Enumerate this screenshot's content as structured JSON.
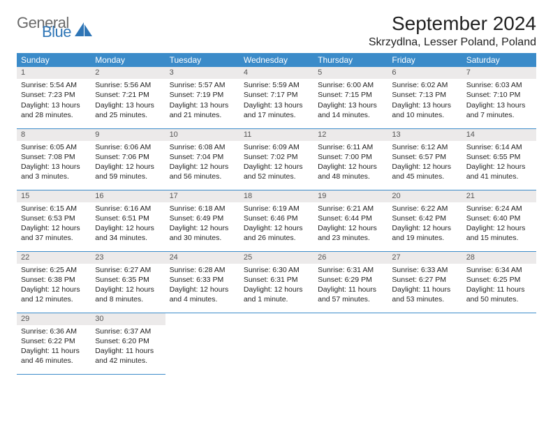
{
  "brand": {
    "word1": "General",
    "word2": "Blue",
    "color1": "#6a6a6a",
    "color2": "#2e75b6"
  },
  "header": {
    "month": "September 2024",
    "location": "Skrzydlna, Lesser Poland, Poland"
  },
  "theme": {
    "header_bg": "#3b8bc9",
    "header_fg": "#ffffff",
    "row_rule": "#3b8bc9",
    "daynum_bg": "#eceaea"
  },
  "weekdays": [
    "Sunday",
    "Monday",
    "Tuesday",
    "Wednesday",
    "Thursday",
    "Friday",
    "Saturday"
  ],
  "weeks": [
    [
      {
        "n": "1",
        "sr": "5:54 AM",
        "ss": "7:23 PM",
        "dl": "13 hours and 28 minutes."
      },
      {
        "n": "2",
        "sr": "5:56 AM",
        "ss": "7:21 PM",
        "dl": "13 hours and 25 minutes."
      },
      {
        "n": "3",
        "sr": "5:57 AM",
        "ss": "7:19 PM",
        "dl": "13 hours and 21 minutes."
      },
      {
        "n": "4",
        "sr": "5:59 AM",
        "ss": "7:17 PM",
        "dl": "13 hours and 17 minutes."
      },
      {
        "n": "5",
        "sr": "6:00 AM",
        "ss": "7:15 PM",
        "dl": "13 hours and 14 minutes."
      },
      {
        "n": "6",
        "sr": "6:02 AM",
        "ss": "7:13 PM",
        "dl": "13 hours and 10 minutes."
      },
      {
        "n": "7",
        "sr": "6:03 AM",
        "ss": "7:10 PM",
        "dl": "13 hours and 7 minutes."
      }
    ],
    [
      {
        "n": "8",
        "sr": "6:05 AM",
        "ss": "7:08 PM",
        "dl": "13 hours and 3 minutes."
      },
      {
        "n": "9",
        "sr": "6:06 AM",
        "ss": "7:06 PM",
        "dl": "12 hours and 59 minutes."
      },
      {
        "n": "10",
        "sr": "6:08 AM",
        "ss": "7:04 PM",
        "dl": "12 hours and 56 minutes."
      },
      {
        "n": "11",
        "sr": "6:09 AM",
        "ss": "7:02 PM",
        "dl": "12 hours and 52 minutes."
      },
      {
        "n": "12",
        "sr": "6:11 AM",
        "ss": "7:00 PM",
        "dl": "12 hours and 48 minutes."
      },
      {
        "n": "13",
        "sr": "6:12 AM",
        "ss": "6:57 PM",
        "dl": "12 hours and 45 minutes."
      },
      {
        "n": "14",
        "sr": "6:14 AM",
        "ss": "6:55 PM",
        "dl": "12 hours and 41 minutes."
      }
    ],
    [
      {
        "n": "15",
        "sr": "6:15 AM",
        "ss": "6:53 PM",
        "dl": "12 hours and 37 minutes."
      },
      {
        "n": "16",
        "sr": "6:16 AM",
        "ss": "6:51 PM",
        "dl": "12 hours and 34 minutes."
      },
      {
        "n": "17",
        "sr": "6:18 AM",
        "ss": "6:49 PM",
        "dl": "12 hours and 30 minutes."
      },
      {
        "n": "18",
        "sr": "6:19 AM",
        "ss": "6:46 PM",
        "dl": "12 hours and 26 minutes."
      },
      {
        "n": "19",
        "sr": "6:21 AM",
        "ss": "6:44 PM",
        "dl": "12 hours and 23 minutes."
      },
      {
        "n": "20",
        "sr": "6:22 AM",
        "ss": "6:42 PM",
        "dl": "12 hours and 19 minutes."
      },
      {
        "n": "21",
        "sr": "6:24 AM",
        "ss": "6:40 PM",
        "dl": "12 hours and 15 minutes."
      }
    ],
    [
      {
        "n": "22",
        "sr": "6:25 AM",
        "ss": "6:38 PM",
        "dl": "12 hours and 12 minutes."
      },
      {
        "n": "23",
        "sr": "6:27 AM",
        "ss": "6:35 PM",
        "dl": "12 hours and 8 minutes."
      },
      {
        "n": "24",
        "sr": "6:28 AM",
        "ss": "6:33 PM",
        "dl": "12 hours and 4 minutes."
      },
      {
        "n": "25",
        "sr": "6:30 AM",
        "ss": "6:31 PM",
        "dl": "12 hours and 1 minute."
      },
      {
        "n": "26",
        "sr": "6:31 AM",
        "ss": "6:29 PM",
        "dl": "11 hours and 57 minutes."
      },
      {
        "n": "27",
        "sr": "6:33 AM",
        "ss": "6:27 PM",
        "dl": "11 hours and 53 minutes."
      },
      {
        "n": "28",
        "sr": "6:34 AM",
        "ss": "6:25 PM",
        "dl": "11 hours and 50 minutes."
      }
    ],
    [
      {
        "n": "29",
        "sr": "6:36 AM",
        "ss": "6:22 PM",
        "dl": "11 hours and 46 minutes."
      },
      {
        "n": "30",
        "sr": "6:37 AM",
        "ss": "6:20 PM",
        "dl": "11 hours and 42 minutes."
      },
      null,
      null,
      null,
      null,
      null
    ]
  ],
  "labels": {
    "sunrise": "Sunrise:",
    "sunset": "Sunset:",
    "daylight": "Daylight:"
  }
}
